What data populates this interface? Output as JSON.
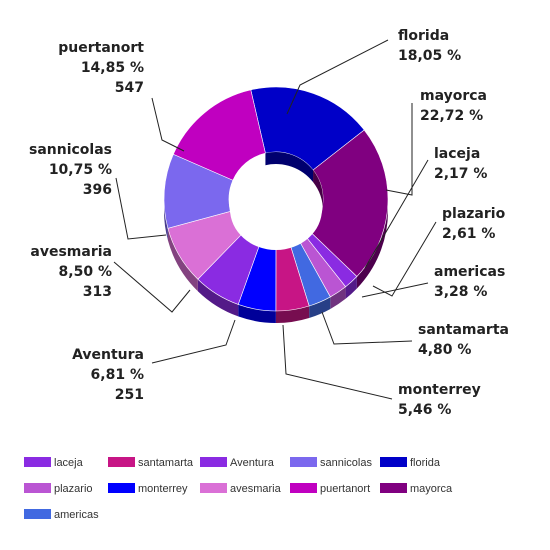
{
  "chart_data": {
    "type": "pie",
    "variant": "donut-3d",
    "slices": [
      {
        "name": "florida",
        "percent": "18,05 %",
        "count": null,
        "value": 18.05,
        "color": "#0000C8"
      },
      {
        "name": "mayorca",
        "percent": "22,72 %",
        "count": null,
        "value": 22.72,
        "color": "#800080"
      },
      {
        "name": "laceja",
        "percent": "2,17 %",
        "count": null,
        "value": 2.17,
        "color": "#8A2BE2"
      },
      {
        "name": "plazario",
        "percent": "2,61 %",
        "count": null,
        "value": 2.61,
        "color": "#BA55D3"
      },
      {
        "name": "americas",
        "percent": "3,28 %",
        "count": null,
        "value": 3.28,
        "color": "#4169E1"
      },
      {
        "name": "santamarta",
        "percent": "4,80 %",
        "count": null,
        "value": 4.8,
        "color": "#C71585"
      },
      {
        "name": "monterrey",
        "percent": "5,46 %",
        "count": null,
        "value": 5.46,
        "color": "#0000FF"
      },
      {
        "name": "Aventura",
        "percent": "6,81 %",
        "count": "251",
        "value": 6.81,
        "color": "#8A2BE2"
      },
      {
        "name": "avesmaria",
        "percent": "8,50 %",
        "count": "313",
        "value": 8.5,
        "color": "#DA70D6"
      },
      {
        "name": "sannicolas",
        "percent": "10,75 %",
        "count": "396",
        "value": 10.75,
        "color": "#7B68EE"
      },
      {
        "name": "puertanort",
        "percent": "14,85 %",
        "count": "547",
        "value": 14.85,
        "color": "#C000C0"
      }
    ],
    "legend": {
      "placement": "bottom",
      "items": [
        "laceja",
        "santamarta",
        "Aventura",
        "sannicolas",
        "florida",
        "plazario",
        "monterrey",
        "avesmaria",
        "puertanort",
        "mayorca",
        "americas"
      ]
    }
  }
}
